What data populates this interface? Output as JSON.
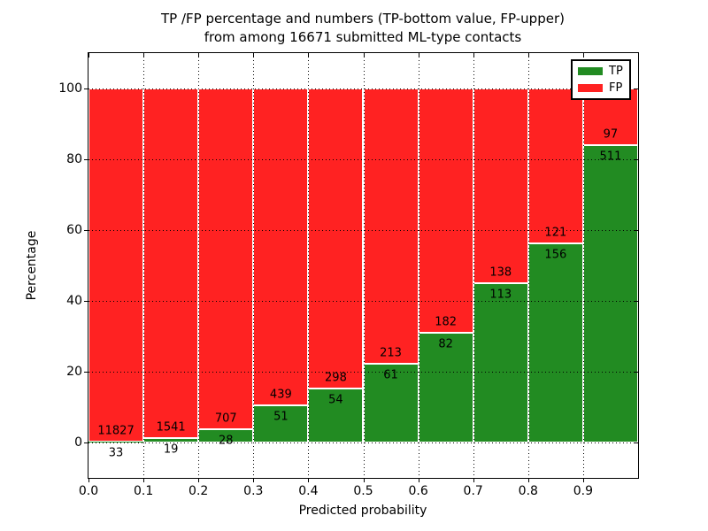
{
  "figure": {
    "title_line1": "TP /FP percentage and numbers (TP-bottom value, FP-upper)",
    "title_line2": "from among 16671 submitted ML-type contacts",
    "xlabel": "Predicted probability",
    "ylabel": "Percentage",
    "background": "#ffffff"
  },
  "axes": {
    "x_tick_labels": [
      "0.0",
      "0.1",
      "0.2",
      "0.3",
      "0.4",
      "0.5",
      "0.6",
      "0.7",
      "0.8",
      "0.9"
    ],
    "y_tick_labels": [
      "0",
      "20",
      "40",
      "60",
      "80",
      "100"
    ],
    "y_tick_values": [
      0,
      20,
      40,
      60,
      80,
      100
    ],
    "xlim": [
      0.0,
      1.0
    ],
    "ylim": [
      -10,
      110
    ],
    "grid_style": "dotted"
  },
  "legend": {
    "items": [
      {
        "label": "TP",
        "color": "#228b22"
      },
      {
        "label": "FP",
        "color": "#ff2222"
      }
    ]
  },
  "colors": {
    "tp": "#228b22",
    "fp": "#ff2222",
    "bar_edge": "#ffffff",
    "grid": "#000000"
  },
  "chart_data": {
    "type": "bar",
    "stacked": true,
    "normalized_to_percent": true,
    "title": "TP /FP percentage and numbers (TP-bottom value, FP-upper) from among 16671 submitted ML-type contacts",
    "xlabel": "Predicted probability",
    "ylabel": "Percentage",
    "xlim": [
      0.0,
      1.0
    ],
    "ylim": [
      -10,
      110
    ],
    "grid": "on",
    "legend_position": "upper right",
    "total_contacts": 16671,
    "bin_width": 0.1,
    "categories": [
      "0.0",
      "0.1",
      "0.2",
      "0.3",
      "0.4",
      "0.5",
      "0.6",
      "0.7",
      "0.8",
      "0.9"
    ],
    "series": [
      {
        "name": "TP",
        "color": "#228b22",
        "counts": [
          33,
          19,
          28,
          51,
          54,
          61,
          82,
          113,
          156,
          511
        ]
      },
      {
        "name": "FP",
        "color": "#ff2222",
        "counts": [
          11827,
          1541,
          707,
          439,
          298,
          213,
          182,
          138,
          121,
          97
        ]
      }
    ],
    "tp_percent": [
      0.28,
      1.22,
      3.81,
      10.41,
      15.34,
      22.26,
      31.06,
      45.02,
      56.32,
      84.05
    ],
    "fp_percent": [
      99.72,
      98.78,
      96.19,
      89.59,
      84.66,
      77.74,
      68.94,
      54.98,
      43.68,
      15.95
    ]
  }
}
